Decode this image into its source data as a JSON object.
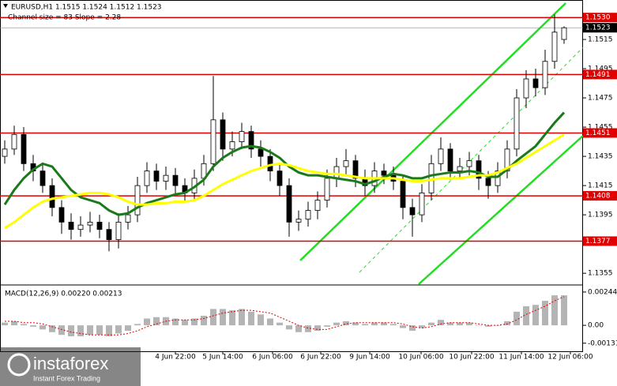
{
  "chart_data": {
    "type": "candlestick",
    "title": "EURUSD,H1  1.1515 1.1524 1.1512 1.1523",
    "subtitle": "Channel size = 83 Slope = 2.28",
    "macd_title": "MACD(12,26,9) 0.00220 0.00213",
    "brand": "instaforex",
    "brand_tagline": "Instant Forex Trading",
    "x_labels": [
      "4 Jun 22:00",
      "5 Jun 14:00",
      "6 Jun 06:00",
      "6 Jun 22:00",
      "9 Jun 14:00",
      "10 Jun 06:00",
      "10 Jun 22:00",
      "11 Jun 14:00",
      "12 Jun 06:00"
    ],
    "open": [
      1.1435,
      1.144,
      1.145,
      1.143,
      1.1425,
      1.1415,
      1.14,
      1.139,
      1.1385,
      1.1388,
      1.139,
      1.1385,
      1.1378,
      1.139,
      1.1395,
      1.1415,
      1.1425,
      1.1418,
      1.1422,
      1.1415,
      1.141,
      1.142,
      1.143,
      1.146,
      1.144,
      1.1445,
      1.1452,
      1.144,
      1.1435,
      1.1425,
      1.1415,
      1.139,
      1.1392,
      1.1398,
      1.1405,
      1.142,
      1.1428,
      1.1432,
      1.142,
      1.1415,
      1.1425,
      1.1422,
      1.1418,
      1.14,
      1.1395,
      1.141,
      1.143,
      1.144,
      1.1425,
      1.1428,
      1.1432,
      1.142,
      1.1415,
      1.1425,
      1.144,
      1.1475,
      1.1488,
      1.1482,
      1.15,
      1.1515
    ],
    "high": [
      1.1446,
      1.1456,
      1.1455,
      1.1436,
      1.143,
      1.142,
      1.1405,
      1.1396,
      1.1394,
      1.1397,
      1.1395,
      1.139,
      1.1396,
      1.1401,
      1.1421,
      1.1431,
      1.143,
      1.1428,
      1.1427,
      1.142,
      1.1426,
      1.1436,
      1.149,
      1.1465,
      1.1452,
      1.1458,
      1.1456,
      1.1446,
      1.144,
      1.143,
      1.142,
      1.1398,
      1.1404,
      1.1411,
      1.1426,
      1.1434,
      1.144,
      1.1436,
      1.1426,
      1.1431,
      1.143,
      1.1428,
      1.1422,
      1.1406,
      1.1416,
      1.1436,
      1.1448,
      1.1444,
      1.1434,
      1.1438,
      1.1436,
      1.1425,
      1.1431,
      1.1446,
      1.1481,
      1.1494,
      1.1495,
      1.1508,
      1.1532,
      1.1524
    ],
    "low": [
      1.143,
      1.1436,
      1.1425,
      1.1418,
      1.141,
      1.1394,
      1.1382,
      1.1378,
      1.138,
      1.1383,
      1.1379,
      1.137,
      1.1372,
      1.1385,
      1.139,
      1.141,
      1.1412,
      1.1412,
      1.1409,
      1.1404,
      1.1405,
      1.1415,
      1.1425,
      1.1432,
      1.1435,
      1.144,
      1.1434,
      1.1428,
      1.1418,
      1.1408,
      1.138,
      1.1384,
      1.1387,
      1.1392,
      1.14,
      1.1414,
      1.1422,
      1.1414,
      1.1408,
      1.141,
      1.1416,
      1.1412,
      1.1392,
      1.138,
      1.139,
      1.1405,
      1.1425,
      1.1419,
      1.142,
      1.1422,
      1.1412,
      1.1406,
      1.141,
      1.142,
      1.1435,
      1.1468,
      1.1476,
      1.1477,
      1.1495,
      1.1512
    ],
    "close": [
      1.144,
      1.145,
      1.143,
      1.1425,
      1.1415,
      1.14,
      1.139,
      1.1385,
      1.1388,
      1.139,
      1.1385,
      1.1378,
      1.139,
      1.1395,
      1.1415,
      1.1425,
      1.1418,
      1.1422,
      1.1415,
      1.141,
      1.142,
      1.143,
      1.146,
      1.144,
      1.1445,
      1.1452,
      1.144,
      1.1435,
      1.1425,
      1.1415,
      1.139,
      1.1392,
      1.1398,
      1.1405,
      1.142,
      1.1428,
      1.1432,
      1.142,
      1.1415,
      1.1425,
      1.1422,
      1.1418,
      1.14,
      1.1395,
      1.141,
      1.143,
      1.144,
      1.1425,
      1.1428,
      1.1432,
      1.142,
      1.1415,
      1.1425,
      1.144,
      1.1475,
      1.1488,
      1.1482,
      1.15,
      1.152,
      1.1523
    ],
    "moving_averages": [
      {
        "color": "#1a7a1a",
        "values": [
          1.1402,
          1.1412,
          1.142,
          1.1426,
          1.143,
          1.1428,
          1.142,
          1.1412,
          1.1407,
          1.1405,
          1.1403,
          1.1398,
          1.1395,
          1.1396,
          1.14,
          1.1403,
          1.1405,
          1.1407,
          1.1409,
          1.141,
          1.1414,
          1.1419,
          1.1428,
          1.1434,
          1.1438,
          1.1441,
          1.1442,
          1.1441,
          1.1438,
          1.1434,
          1.1428,
          1.1424,
          1.1422,
          1.1422,
          1.1421,
          1.142,
          1.1419,
          1.1418,
          1.1416,
          1.1418,
          1.1421,
          1.1423,
          1.1422,
          1.142,
          1.142,
          1.1422,
          1.1423,
          1.1424,
          1.1424,
          1.1425,
          1.1424,
          1.1421,
          1.1421,
          1.1426,
          1.1432,
          1.1437,
          1.1442,
          1.145,
          1.1458,
          1.1465
        ]
      },
      {
        "color": "#ffff00",
        "values": [
          1.1386,
          1.139,
          1.1395,
          1.14,
          1.1404,
          1.1406,
          1.1407,
          1.1408,
          1.1409,
          1.141,
          1.141,
          1.1409,
          1.1407,
          1.1404,
          1.1402,
          1.1402,
          1.1403,
          1.1403,
          1.1404,
          1.1404,
          1.1405,
          1.1408,
          1.1412,
          1.1416,
          1.1419,
          1.1422,
          1.1425,
          1.1427,
          1.1429,
          1.143,
          1.1429,
          1.1427,
          1.1425,
          1.1424,
          1.1423,
          1.1423,
          1.1422,
          1.1421,
          1.142,
          1.142,
          1.142,
          1.142,
          1.1419,
          1.1418,
          1.1418,
          1.1419,
          1.142,
          1.142,
          1.142,
          1.1421,
          1.1422,
          1.1422,
          1.1424,
          1.1427,
          1.143,
          1.1434,
          1.1438,
          1.1442,
          1.1446,
          1.145
        ]
      }
    ],
    "levels": [
      {
        "value": 1.153,
        "label": "1.1530"
      },
      1.1491,
      1.1451,
      1.1408,
      1.1377
    ],
    "current_price": 1.1523,
    "ylim": [
      1.1347,
      1.1542
    ],
    "yticks": [
      1.1515,
      1.1495,
      1.1475,
      1.1455,
      1.1435,
      1.1415,
      1.1395,
      1.1375,
      1.1355
    ],
    "macd_histogram": [
      0.0002,
      0.0003,
      0.0001,
      -0.0001,
      -0.0003,
      -0.0005,
      -0.0007,
      -0.0008,
      -0.0008,
      -0.0007,
      -0.0007,
      -0.0008,
      -0.0006,
      -0.0004,
      0.0001,
      0.0005,
      0.0006,
      0.0006,
      0.0005,
      0.0004,
      0.0005,
      0.0007,
      0.0012,
      0.0012,
      0.0011,
      0.0012,
      0.001,
      0.0008,
      0.0005,
      0.0002,
      -0.0003,
      -0.0005,
      -0.0005,
      -0.0004,
      -0.0001,
      0.0002,
      0.0003,
      0.0002,
      0.0001,
      0.0002,
      0.0002,
      0.0001,
      -0.0002,
      -0.0004,
      -0.0002,
      0.0002,
      0.0004,
      0.0002,
      0.0002,
      0.0002,
      0.0,
      -0.0001,
      0.0,
      0.0003,
      0.001,
      0.0014,
      0.0015,
      0.0018,
      0.0022,
      0.0022
    ],
    "macd_signal": [
      0.0003,
      0.0003,
      0.0002,
      0.0002,
      0.0001,
      -0.0001,
      -0.0003,
      -0.0005,
      -0.0006,
      -0.0007,
      -0.0007,
      -0.0007,
      -0.0007,
      -0.0006,
      -0.0004,
      -0.0001,
      0.0001,
      0.0003,
      0.0004,
      0.0004,
      0.0004,
      0.0005,
      0.0007,
      0.0009,
      0.001,
      0.0011,
      0.0011,
      0.001,
      0.0009,
      0.0006,
      0.0003,
      0.0,
      -0.0002,
      -0.0003,
      -0.0003,
      -0.0001,
      0.0001,
      0.0002,
      0.0002,
      0.0002,
      0.0002,
      0.0002,
      0.0001,
      -0.0001,
      -0.0002,
      -0.0001,
      0.0001,
      0.0002,
      0.0002,
      0.0002,
      0.0001,
      0.0,
      0.0,
      0.0001,
      0.0004,
      0.0008,
      0.0011,
      0.0014,
      0.0018,
      0.0021
    ],
    "y2lim": [
      -0.0019,
      0.0029
    ],
    "y2ticks": [
      0.00244,
      {
        "value": 0,
        "label": "0.00"
      },
      -0.00131
    ],
    "candle_color": "#000000",
    "level_color": "#e00000",
    "signal_color": "#e00000",
    "histogram_color": "#b4b4b4"
  }
}
